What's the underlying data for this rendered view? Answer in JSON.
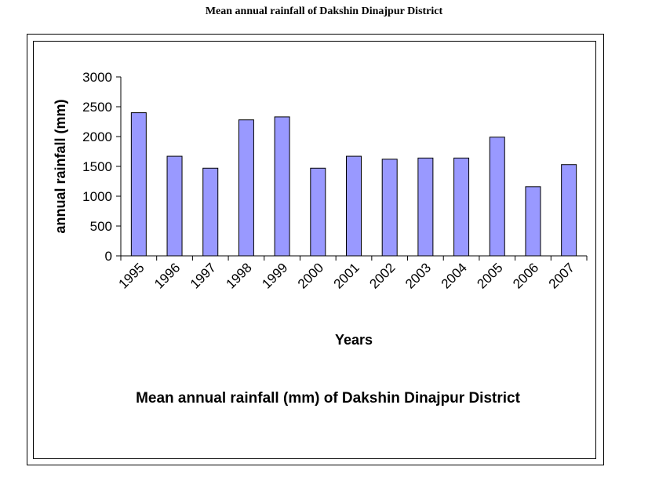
{
  "page_title": "Mean annual rainfall of Dakshin Dinajpur District",
  "chart_data": {
    "type": "bar",
    "title": "",
    "caption": "Mean annual rainfall (mm) of Dakshin Dinajpur District",
    "xlabel": "Years",
    "ylabel": "annual rainfall (mm)",
    "categories": [
      "1995",
      "1996",
      "1997",
      "1998",
      "1999",
      "2000",
      "2001",
      "2002",
      "2003",
      "2004",
      "2005",
      "2006",
      "2007"
    ],
    "values": [
      2400,
      1670,
      1470,
      2280,
      2330,
      1470,
      1670,
      1620,
      1640,
      1640,
      1990,
      1160,
      1530
    ],
    "ylim": [
      0,
      3000
    ],
    "yticks": [
      0,
      500,
      1000,
      1500,
      2000,
      2500,
      3000
    ],
    "grid": false,
    "legend": "none",
    "bar_color": "#9999ff",
    "bar_border_color": "#000000"
  }
}
